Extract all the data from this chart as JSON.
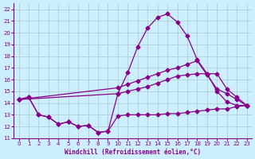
{
  "xlabel": "Windchill (Refroidissement éolien,°C)",
  "bg_color": "#cceeff",
  "line_color": "#880088",
  "xlim": [
    -0.5,
    23.5
  ],
  "ylim": [
    11,
    22.5
  ],
  "xticks": [
    0,
    1,
    2,
    3,
    4,
    5,
    6,
    7,
    8,
    9,
    10,
    11,
    12,
    13,
    14,
    15,
    16,
    17,
    18,
    19,
    20,
    21,
    22,
    23
  ],
  "yticks": [
    11,
    12,
    13,
    14,
    15,
    16,
    17,
    18,
    19,
    20,
    21,
    22
  ],
  "grid_color": "#aacccc",
  "markersize": 2.5,
  "line1_x": [
    0,
    1,
    2,
    3,
    4,
    5,
    6,
    7,
    8,
    9,
    10,
    11,
    12,
    13,
    14,
    15,
    16,
    17,
    18,
    19,
    20,
    21,
    22,
    23
  ],
  "line1_y": [
    14.3,
    14.5,
    13.0,
    12.8,
    12.2,
    12.4,
    12.0,
    12.1,
    11.5,
    11.6,
    12.9,
    13.0,
    13.0,
    13.0,
    13.0,
    13.1,
    13.1,
    13.2,
    13.3,
    13.4,
    13.5,
    13.5,
    13.7,
    13.8
  ],
  "line2_x": [
    0,
    1,
    2,
    3,
    4,
    5,
    6,
    7,
    8,
    9,
    10,
    11,
    12,
    13,
    14,
    15,
    16,
    17,
    18,
    19,
    20,
    21,
    22,
    23
  ],
  "line2_y": [
    14.3,
    14.5,
    13.0,
    12.8,
    12.2,
    12.4,
    12.0,
    12.1,
    11.5,
    11.6,
    14.8,
    16.6,
    18.8,
    20.4,
    21.3,
    21.6,
    20.9,
    19.7,
    17.7,
    16.5,
    15.0,
    14.1,
    13.8,
    13.8
  ],
  "line3_x": [
    0,
    10,
    11,
    12,
    13,
    14,
    15,
    16,
    17,
    18,
    19,
    20,
    21,
    22,
    23
  ],
  "line3_y": [
    14.3,
    15.3,
    15.6,
    15.9,
    16.2,
    16.5,
    16.8,
    17.0,
    17.3,
    17.6,
    16.4,
    15.2,
    14.8,
    14.3,
    13.8
  ],
  "line4_x": [
    0,
    10,
    11,
    12,
    13,
    14,
    15,
    16,
    17,
    18,
    19,
    20,
    21,
    22,
    23
  ],
  "line4_y": [
    14.3,
    14.8,
    15.0,
    15.2,
    15.4,
    15.7,
    16.0,
    16.3,
    16.4,
    16.5,
    16.5,
    16.5,
    15.2,
    14.5,
    13.8
  ]
}
